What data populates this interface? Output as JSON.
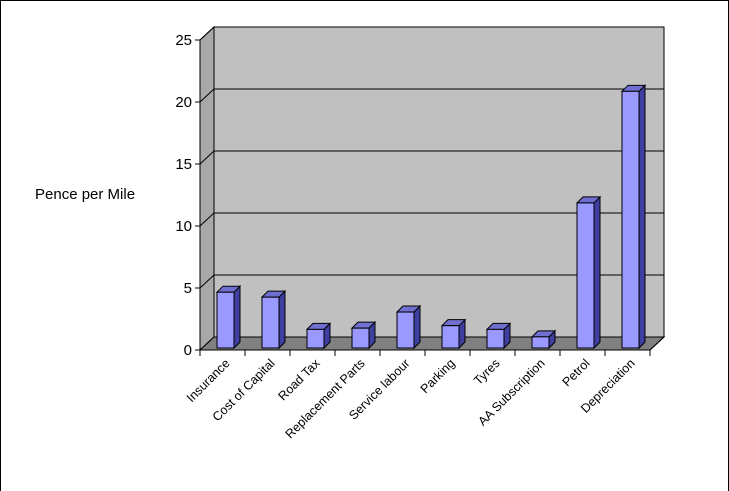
{
  "chart_data": {
    "type": "bar",
    "ylabel": "Pence per Mile",
    "xlabel": "",
    "ylim": [
      0,
      25
    ],
    "yticks": [
      0,
      5,
      10,
      15,
      20,
      25
    ],
    "grid": true,
    "categories": [
      "Insurance",
      "Cost of Capital",
      "Road Tax",
      "Replacement Parts",
      "Service labour",
      "Parking",
      "Tyres",
      "AA Subscription",
      "Petrol",
      "Depreciation"
    ],
    "values": [
      4.5,
      4.1,
      1.5,
      1.6,
      2.9,
      1.8,
      1.5,
      0.9,
      11.7,
      20.7
    ],
    "colors": {
      "bar_front": "#9999ff",
      "bar_side": "#3f3fa0",
      "bar_top": "#6f6fd0",
      "wall": "#c0c0c0",
      "floor": "#808080",
      "grid": "#000000"
    }
  }
}
